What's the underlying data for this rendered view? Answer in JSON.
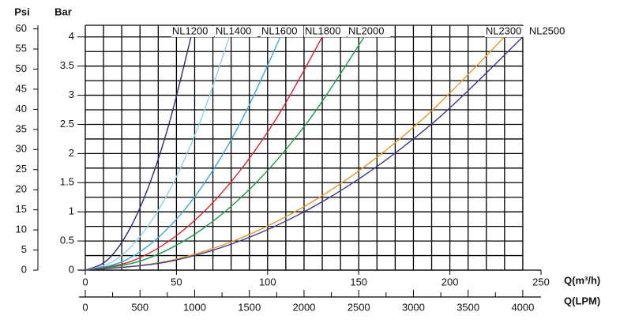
{
  "chart_data": {
    "type": "line",
    "y_label": "Bar",
    "y2_label": "Psi",
    "x_label": "Q(m³/h)",
    "x2_label": "Q(LPM)",
    "xlim": [
      0,
      250
    ],
    "xticks": [
      0,
      50,
      100,
      150,
      200,
      250
    ],
    "xgrid": [
      0,
      10,
      20,
      30,
      40,
      50,
      60,
      70,
      80,
      90,
      100,
      110,
      120,
      130,
      140,
      150,
      160,
      170,
      180,
      190,
      200,
      210,
      220,
      230,
      240
    ],
    "x2lim": [
      0,
      4166.67
    ],
    "x2ticks": [
      0,
      500,
      1000,
      1500,
      2000,
      2500,
      3000,
      3500,
      4000
    ],
    "x2minor": [
      250,
      750,
      1250,
      1750,
      2250,
      2750,
      3250,
      3750
    ],
    "ylim": [
      0,
      4.2
    ],
    "yticks": [
      0,
      0.5,
      1,
      1.5,
      2,
      2.5,
      3,
      3.5,
      4
    ],
    "ygrid": [
      0,
      0.25,
      0.5,
      0.75,
      1,
      1.25,
      1.5,
      1.75,
      2,
      2.25,
      2.5,
      2.75,
      3,
      3.25,
      3.5,
      3.75,
      4,
      4.2
    ],
    "y2lim": [
      0,
      60.9
    ],
    "y2ticks": [
      0,
      5,
      10,
      15,
      20,
      25,
      30,
      35,
      40,
      45,
      50,
      55,
      60
    ],
    "grid": true,
    "series": [
      {
        "name": "NL1200",
        "color": "#2b2a7a",
        "x": [
          0,
          11.6,
          23.2,
          34.8,
          46.4,
          58
        ],
        "values": [
          0,
          0.16,
          0.64,
          1.44,
          2.56,
          4
        ]
      },
      {
        "name": "NL1400",
        "color": "#8fd0ea",
        "x": [
          0,
          15.8,
          31.6,
          47.4,
          63.2,
          79
        ],
        "values": [
          0,
          0.16,
          0.64,
          1.44,
          2.56,
          4
        ]
      },
      {
        "name": "NL1600",
        "color": "#3aa8d8",
        "x": [
          0,
          21.4,
          42.8,
          64.2,
          85.6,
          107
        ],
        "values": [
          0,
          0.16,
          0.64,
          1.44,
          2.56,
          4
        ]
      },
      {
        "name": "NL1800",
        "color": "#d8232a",
        "x": [
          0,
          26,
          52,
          78,
          104,
          130
        ],
        "values": [
          0,
          0.16,
          0.64,
          1.44,
          2.56,
          4
        ]
      },
      {
        "name": "NL2000",
        "color": "#1a9a4a",
        "x": [
          0,
          30.6,
          61.2,
          91.8,
          122.4,
          153
        ],
        "values": [
          0,
          0.16,
          0.64,
          1.44,
          2.56,
          4
        ]
      },
      {
        "name": "NL2300",
        "color": "#e8962a",
        "x": [
          0,
          46,
          92,
          138,
          184,
          230
        ],
        "values": [
          0,
          0.16,
          0.64,
          1.44,
          2.56,
          4
        ]
      },
      {
        "name": "NL2500",
        "color": "#3a3a8a",
        "x": [
          0,
          48,
          96,
          144,
          192,
          240
        ],
        "values": [
          0,
          0.16,
          0.64,
          1.44,
          2.56,
          4
        ]
      }
    ]
  }
}
